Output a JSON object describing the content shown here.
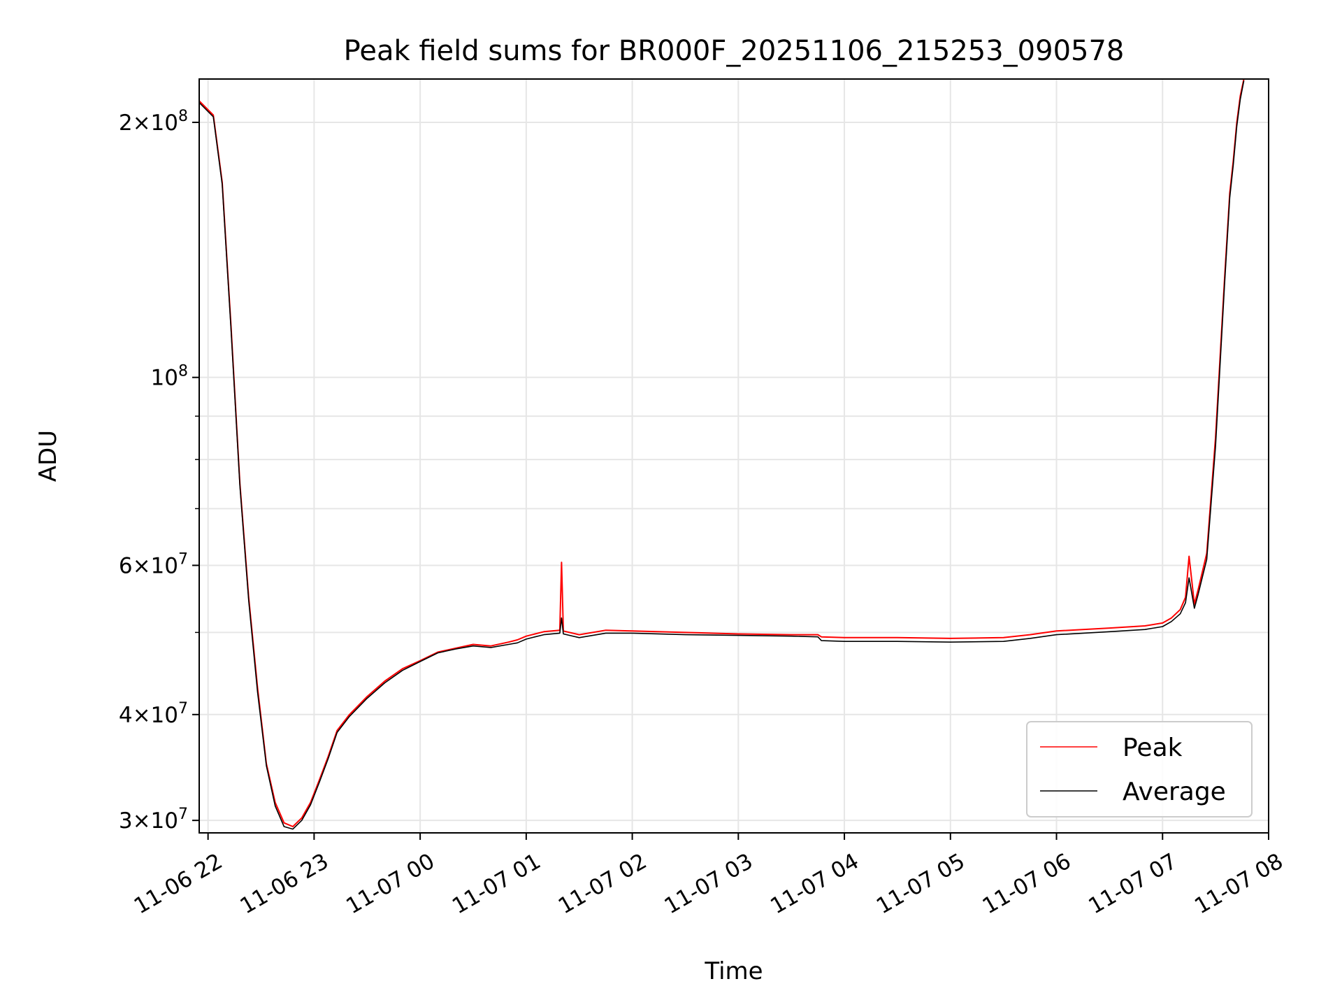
{
  "chart_data": {
    "type": "line",
    "title": "Peak field sums for BR000F_20251106_215253_090578",
    "xlabel": "Time",
    "ylabel": "ADU",
    "y_scale": "log",
    "ylim": [
      29000000,
      225000000
    ],
    "xlim": [
      "2025-11-06 21:55",
      "2025-11-07 08:00"
    ],
    "grid": true,
    "legend_position": "lower right",
    "x_tick_labels": [
      "11-06 22",
      "11-06 23",
      "11-07 00",
      "11-07 01",
      "11-07 02",
      "11-07 03",
      "11-07 04",
      "11-07 05",
      "11-07 06",
      "11-07 07",
      "11-07 08"
    ],
    "x_tick_values": [
      "2025-11-06 22:00",
      "2025-11-06 23:00",
      "2025-11-07 00:00",
      "2025-11-07 01:00",
      "2025-11-07 02:00",
      "2025-11-07 03:00",
      "2025-11-07 04:00",
      "2025-11-07 05:00",
      "2025-11-07 06:00",
      "2025-11-07 07:00",
      "2025-11-07 08:00"
    ],
    "y_ticks": [
      {
        "value": 30000000,
        "mantissa": "3",
        "exponent": "7"
      },
      {
        "value": 40000000,
        "mantissa": "4",
        "exponent": "7"
      },
      {
        "value": 60000000,
        "mantissa": "6",
        "exponent": "7"
      },
      {
        "value": 100000000,
        "mantissa": "",
        "exponent": "8"
      },
      {
        "value": 200000000,
        "mantissa": "2",
        "exponent": "8"
      }
    ],
    "y_minor_ticks": [
      50000000,
      70000000,
      80000000,
      90000000
    ],
    "series": [
      {
        "name": "Peak",
        "color": "#ff0000",
        "x": [
          "2025-11-06 21:55",
          "2025-11-06 22:03",
          "2025-11-06 22:08",
          "2025-11-06 22:13",
          "2025-11-06 22:18",
          "2025-11-06 22:23",
          "2025-11-06 22:28",
          "2025-11-06 22:33",
          "2025-11-06 22:38",
          "2025-11-06 22:43",
          "2025-11-06 22:48",
          "2025-11-06 22:53",
          "2025-11-06 22:58",
          "2025-11-06 23:03",
          "2025-11-06 23:08",
          "2025-11-06 23:13",
          "2025-11-06 23:20",
          "2025-11-06 23:30",
          "2025-11-06 23:40",
          "2025-11-06 23:50",
          "2025-11-07 00:00",
          "2025-11-07 00:10",
          "2025-11-07 00:20",
          "2025-11-07 00:30",
          "2025-11-07 00:40",
          "2025-11-07 00:50",
          "2025-11-07 00:55",
          "2025-11-07 01:00",
          "2025-11-07 01:05",
          "2025-11-07 01:10",
          "2025-11-07 01:19",
          "2025-11-07 01:20",
          "2025-11-07 01:21",
          "2025-11-07 01:30",
          "2025-11-07 01:45",
          "2025-11-07 02:00",
          "2025-11-07 02:30",
          "2025-11-07 03:00",
          "2025-11-07 03:30",
          "2025-11-07 03:45",
          "2025-11-07 03:47",
          "2025-11-07 04:00",
          "2025-11-07 04:30",
          "2025-11-07 05:00",
          "2025-11-07 05:30",
          "2025-11-07 05:45",
          "2025-11-07 06:00",
          "2025-11-07 06:30",
          "2025-11-07 06:50",
          "2025-11-07 07:00",
          "2025-11-07 07:05",
          "2025-11-07 07:10",
          "2025-11-07 07:13",
          "2025-11-07 07:15",
          "2025-11-07 07:18",
          "2025-11-07 07:20",
          "2025-11-07 07:25",
          "2025-11-07 07:30",
          "2025-11-07 07:35",
          "2025-11-07 07:38",
          "2025-11-07 07:40",
          "2025-11-07 07:42",
          "2025-11-07 07:44",
          "2025-11-07 07:46"
        ],
        "y": [
          212000000,
          204000000,
          170000000,
          115000000,
          75000000,
          55000000,
          43000000,
          35000000,
          31500000,
          29800000,
          29500000,
          30200000,
          31500000,
          33500000,
          35700000,
          38300000,
          40000000,
          42000000,
          43800000,
          45300000,
          46300000,
          47400000,
          47900000,
          48400000,
          48200000,
          48700000,
          49000000,
          49500000,
          49800000,
          50100000,
          50300000,
          60500000,
          50200000,
          49700000,
          50300000,
          50200000,
          50000000,
          49800000,
          49700000,
          49700000,
          49400000,
          49300000,
          49300000,
          49200000,
          49300000,
          49700000,
          50200000,
          50600000,
          50900000,
          51300000,
          52000000,
          53200000,
          55000000,
          61500000,
          54000000,
          56000000,
          62000000,
          85000000,
          130000000,
          165000000,
          180000000,
          200000000,
          215000000,
          225000000
        ]
      },
      {
        "name": "Average",
        "color": "#000000",
        "x": [
          "2025-11-06 21:55",
          "2025-11-06 22:03",
          "2025-11-06 22:08",
          "2025-11-06 22:13",
          "2025-11-06 22:18",
          "2025-11-06 22:23",
          "2025-11-06 22:28",
          "2025-11-06 22:33",
          "2025-11-06 22:38",
          "2025-11-06 22:43",
          "2025-11-06 22:48",
          "2025-11-06 22:53",
          "2025-11-06 22:58",
          "2025-11-06 23:03",
          "2025-11-06 23:08",
          "2025-11-06 23:13",
          "2025-11-06 23:20",
          "2025-11-06 23:30",
          "2025-11-06 23:40",
          "2025-11-06 23:50",
          "2025-11-07 00:00",
          "2025-11-07 00:10",
          "2025-11-07 00:20",
          "2025-11-07 00:30",
          "2025-11-07 00:40",
          "2025-11-07 00:50",
          "2025-11-07 00:55",
          "2025-11-07 01:00",
          "2025-11-07 01:05",
          "2025-11-07 01:10",
          "2025-11-07 01:19",
          "2025-11-07 01:20",
          "2025-11-07 01:21",
          "2025-11-07 01:30",
          "2025-11-07 01:45",
          "2025-11-07 02:00",
          "2025-11-07 02:30",
          "2025-11-07 03:00",
          "2025-11-07 03:30",
          "2025-11-07 03:45",
          "2025-11-07 03:47",
          "2025-11-07 04:00",
          "2025-11-07 04:30",
          "2025-11-07 05:00",
          "2025-11-07 05:30",
          "2025-11-07 05:45",
          "2025-11-07 06:00",
          "2025-11-07 06:30",
          "2025-11-07 06:50",
          "2025-11-07 07:00",
          "2025-11-07 07:05",
          "2025-11-07 07:10",
          "2025-11-07 07:13",
          "2025-11-07 07:15",
          "2025-11-07 07:18",
          "2025-11-07 07:20",
          "2025-11-07 07:25",
          "2025-11-07 07:30",
          "2025-11-07 07:35",
          "2025-11-07 07:38",
          "2025-11-07 07:40",
          "2025-11-07 07:42",
          "2025-11-07 07:44",
          "2025-11-07 07:46"
        ],
        "y": [
          211000000,
          203000000,
          169000000,
          114000000,
          74500000,
          54500000,
          42500000,
          34800000,
          31200000,
          29500000,
          29300000,
          30000000,
          31300000,
          33300000,
          35500000,
          38100000,
          39800000,
          41800000,
          43600000,
          45100000,
          46200000,
          47300000,
          47800000,
          48200000,
          48000000,
          48400000,
          48600000,
          49100000,
          49400000,
          49700000,
          49900000,
          52000000,
          49800000,
          49300000,
          49900000,
          49900000,
          49700000,
          49600000,
          49500000,
          49400000,
          48900000,
          48800000,
          48800000,
          48700000,
          48800000,
          49200000,
          49700000,
          50100000,
          50400000,
          50800000,
          51500000,
          52600000,
          54200000,
          58000000,
          53400000,
          55300000,
          61000000,
          83000000,
          128000000,
          163000000,
          178000000,
          198000000,
          213000000,
          224000000
        ]
      }
    ]
  }
}
